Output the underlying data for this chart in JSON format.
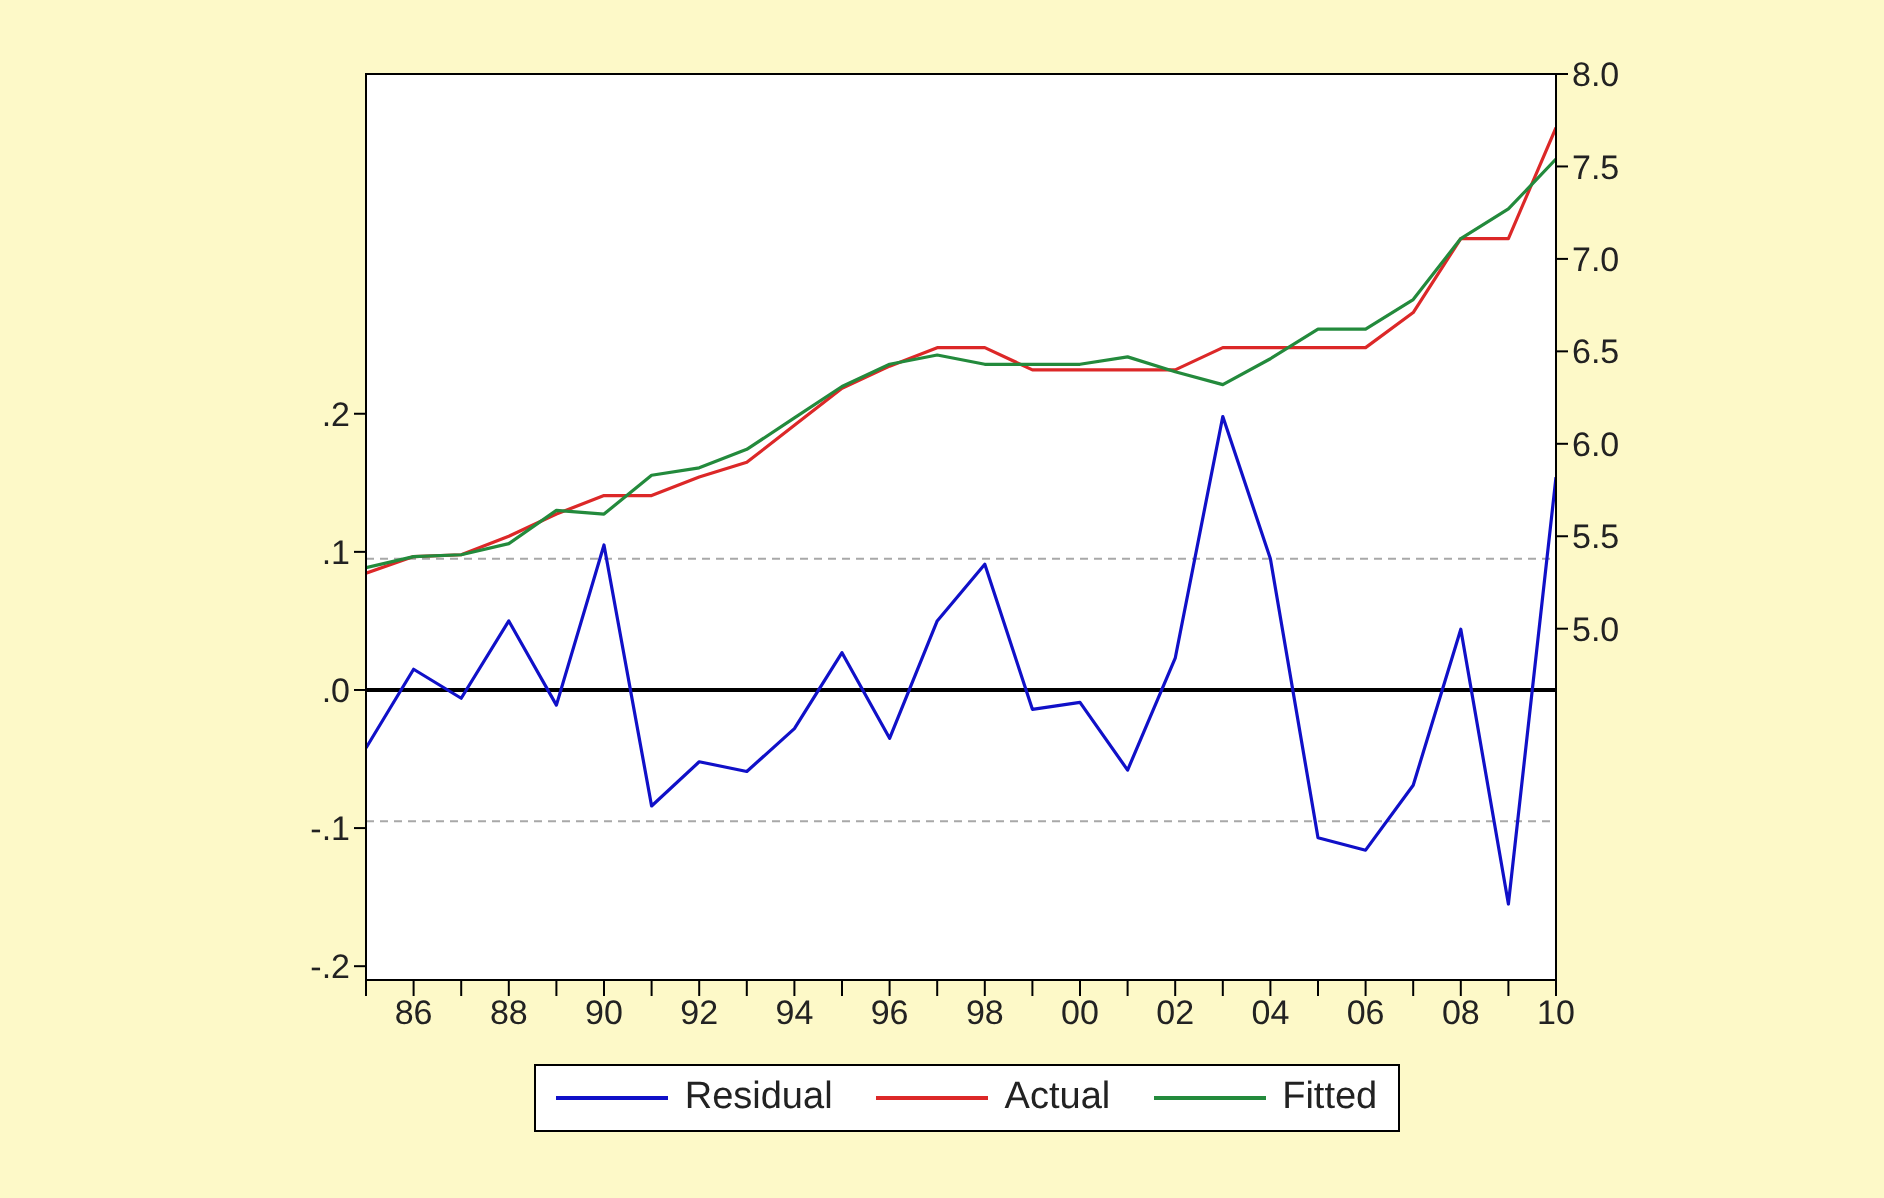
{
  "chart_data": {
    "type": "line",
    "x": [
      1985,
      1986,
      1987,
      1988,
      1989,
      1990,
      1991,
      1992,
      1993,
      1994,
      1995,
      1996,
      1997,
      1998,
      1999,
      2000,
      2001,
      2002,
      2003,
      2004,
      2005,
      2006,
      2007,
      2008,
      2009,
      2010
    ],
    "series": [
      {
        "name": "Residual",
        "color": "#1010c8",
        "axis": "y",
        "values": [
          -0.042,
          0.015,
          -0.006,
          0.05,
          -0.011,
          0.105,
          -0.084,
          -0.052,
          -0.059,
          -0.028,
          0.027,
          -0.035,
          0.05,
          0.091,
          -0.014,
          -0.009,
          -0.058,
          0.023,
          0.198,
          0.095,
          -0.107,
          -0.116,
          -0.069,
          0.044,
          -0.155,
          0.154
        ]
      },
      {
        "name": "Actual",
        "color": "#dc2828",
        "axis": "y2",
        "values": [
          5.3,
          5.39,
          5.4,
          5.5,
          5.62,
          5.72,
          5.72,
          5.82,
          5.9,
          6.1,
          6.3,
          6.42,
          6.52,
          6.52,
          6.4,
          6.4,
          6.4,
          6.4,
          6.52,
          6.52,
          6.52,
          6.52,
          6.71,
          7.11,
          7.11,
          7.71
        ]
      },
      {
        "name": "Fitted",
        "color": "#238a3c",
        "axis": "y2",
        "values": [
          5.33,
          5.39,
          5.4,
          5.46,
          5.64,
          5.62,
          5.83,
          5.87,
          5.97,
          6.14,
          6.31,
          6.43,
          6.48,
          6.43,
          6.43,
          6.43,
          6.47,
          6.39,
          6.32,
          6.46,
          6.62,
          6.62,
          6.78,
          7.11,
          7.27,
          7.54
        ]
      }
    ],
    "xlim": [
      1985,
      2010
    ],
    "xticks": [
      {
        "value": 1985,
        "label": null
      },
      {
        "value": 1986,
        "label": "86"
      },
      {
        "value": 1987,
        "label": null
      },
      {
        "value": 1988,
        "label": "88"
      },
      {
        "value": 1989,
        "label": null
      },
      {
        "value": 1990,
        "label": "90"
      },
      {
        "value": 1991,
        "label": null
      },
      {
        "value": 1992,
        "label": "92"
      },
      {
        "value": 1993,
        "label": null
      },
      {
        "value": 1994,
        "label": "94"
      },
      {
        "value": 1995,
        "label": null
      },
      {
        "value": 1996,
        "label": "96"
      },
      {
        "value": 1997,
        "label": null
      },
      {
        "value": 1998,
        "label": "98"
      },
      {
        "value": 1999,
        "label": null
      },
      {
        "value": 2000,
        "label": "00"
      },
      {
        "value": 2001,
        "label": null
      },
      {
        "value": 2002,
        "label": "02"
      },
      {
        "value": 2003,
        "label": null
      },
      {
        "value": 2004,
        "label": "04"
      },
      {
        "value": 2005,
        "label": null
      },
      {
        "value": 2006,
        "label": "06"
      },
      {
        "value": 2007,
        "label": null
      },
      {
        "value": 2008,
        "label": "08"
      },
      {
        "value": 2009,
        "label": null
      },
      {
        "value": 2010,
        "label": "10"
      }
    ],
    "ylim": [
      -0.21,
      0.446
    ],
    "yticks": [
      {
        "value": -0.2,
        "label": "-.2"
      },
      {
        "value": -0.1,
        "label": "-.1"
      },
      {
        "value": 0,
        "label": ".0"
      },
      {
        "value": 0.1,
        "label": ".1"
      },
      {
        "value": 0.2,
        "label": ".2"
      }
    ],
    "y2lim": [
      3.1,
      8.0
    ],
    "y2ticks": [
      {
        "value": 5,
        "label": "5.0"
      },
      {
        "value": 5.5,
        "label": "5.5"
      },
      {
        "value": 6,
        "label": "6.0"
      },
      {
        "value": 6.5,
        "label": "6.5"
      },
      {
        "value": 7,
        "label": "7.0"
      },
      {
        "value": 7.5,
        "label": "7.5"
      },
      {
        "value": 8,
        "label": "8.0"
      }
    ],
    "ref_lines": [
      {
        "axis": "y",
        "value": 0,
        "color": "#000000",
        "line_style": "solid"
      },
      {
        "axis": "y",
        "value": 0.095,
        "color": "#a8a8a8",
        "line_style": "dashed"
      },
      {
        "axis": "y",
        "value": -0.095,
        "color": "#a8a8a8",
        "line_style": "dashed"
      }
    ],
    "legend": "bottom",
    "line_style": "solid"
  }
}
